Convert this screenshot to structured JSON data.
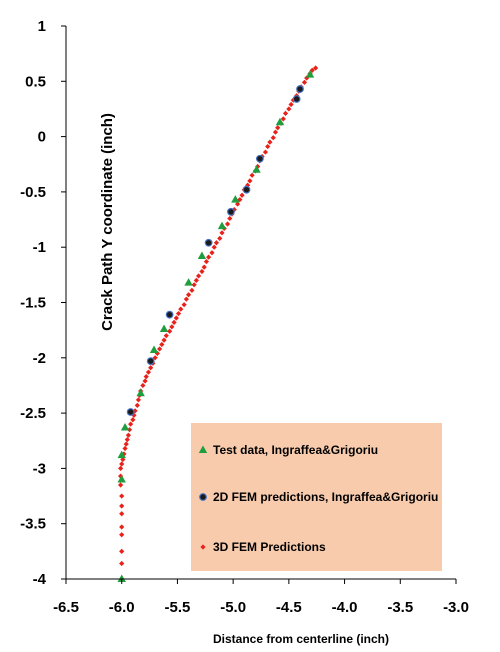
{
  "chart_data": {
    "type": "scatter",
    "xlabel": "Distance from centerline (inch)",
    "ylabel": "Crack Path Y coordinate (inch)",
    "xlim": [
      -6.5,
      -3.0
    ],
    "ylim": [
      -4,
      1
    ],
    "xticks": [
      "-6.5",
      "-6.0",
      "-5.5",
      "-5.0",
      "-4.5",
      "-4.0",
      "-3.5",
      "-3.0"
    ],
    "yticks": [
      "1",
      "0.5",
      "0",
      "-0.5",
      "-1",
      "-1.5",
      "-2",
      "-2.5",
      "-3",
      "-3.5",
      "-4"
    ],
    "legend_position": "bottom-right",
    "legend_background": "#f8cbad",
    "series": [
      {
        "name": "Test data, Ingraffea&Grigoriu",
        "marker": "triangle",
        "color": "#1e9e3c",
        "points": [
          [
            -6.0,
            -4.0
          ],
          [
            -6.0,
            -3.1
          ],
          [
            -6.0,
            -2.88
          ],
          [
            -5.97,
            -2.63
          ],
          [
            -5.83,
            -2.32
          ],
          [
            -5.71,
            -1.93
          ],
          [
            -5.62,
            -1.74
          ],
          [
            -5.4,
            -1.32
          ],
          [
            -5.28,
            -1.08
          ],
          [
            -5.1,
            -0.81
          ],
          [
            -4.98,
            -0.57
          ],
          [
            -4.79,
            -0.3
          ],
          [
            -4.58,
            0.13
          ],
          [
            -4.31,
            0.56
          ]
        ]
      },
      {
        "name": "2D FEM predictions, Ingraffea&Grigoriu",
        "marker": "circle",
        "color": "#1a1a1a",
        "edge": "#4472c4",
        "points": [
          [
            -5.92,
            -2.49
          ],
          [
            -5.74,
            -2.03
          ],
          [
            -5.57,
            -1.61
          ],
          [
            -5.22,
            -0.96
          ],
          [
            -5.02,
            -0.68
          ],
          [
            -4.88,
            -0.48
          ],
          [
            -4.76,
            -0.2
          ],
          [
            -4.43,
            0.34
          ],
          [
            -4.4,
            0.43
          ]
        ]
      },
      {
        "name": "3D FEM Predictions",
        "marker": "diamond",
        "color": "#e8221a",
        "points": [
          [
            -6.0,
            -4.0
          ],
          [
            -6.0,
            -3.86
          ],
          [
            -6.0,
            -3.75
          ],
          [
            -6.0,
            -3.6
          ],
          [
            -6.0,
            -3.53
          ],
          [
            -6.0,
            -3.41
          ],
          [
            -6.0,
            -3.34
          ],
          [
            -6.0,
            -3.25
          ],
          [
            -6.01,
            -3.15
          ],
          [
            -6.01,
            -3.07
          ],
          [
            -6.01,
            -3.0
          ],
          [
            -6.0,
            -2.96
          ],
          [
            -5.99,
            -2.92
          ],
          [
            -5.98,
            -2.87
          ],
          [
            -5.97,
            -2.82
          ],
          [
            -5.96,
            -2.78
          ],
          [
            -5.95,
            -2.74
          ],
          [
            -5.94,
            -2.7
          ],
          [
            -5.93,
            -2.65
          ],
          [
            -5.92,
            -2.6
          ],
          [
            -5.9,
            -2.56
          ],
          [
            -5.89,
            -2.52
          ],
          [
            -5.88,
            -2.48
          ],
          [
            -5.86,
            -2.43
          ],
          [
            -5.85,
            -2.38
          ],
          [
            -5.84,
            -2.34
          ],
          [
            -5.83,
            -2.3
          ],
          [
            -5.81,
            -2.25
          ],
          [
            -5.79,
            -2.21
          ],
          [
            -5.78,
            -2.17
          ],
          [
            -5.76,
            -2.13
          ],
          [
            -5.74,
            -2.09
          ],
          [
            -5.72,
            -2.05
          ],
          [
            -5.7,
            -2.0
          ],
          [
            -5.68,
            -1.96
          ],
          [
            -5.66,
            -1.92
          ],
          [
            -5.64,
            -1.88
          ],
          [
            -5.62,
            -1.84
          ],
          [
            -5.6,
            -1.8
          ],
          [
            -5.57,
            -1.76
          ],
          [
            -5.55,
            -1.72
          ],
          [
            -5.53,
            -1.68
          ],
          [
            -5.51,
            -1.64
          ],
          [
            -5.49,
            -1.6
          ],
          [
            -5.47,
            -1.56
          ],
          [
            -5.44,
            -1.52
          ],
          [
            -5.42,
            -1.47
          ],
          [
            -5.4,
            -1.43
          ],
          [
            -5.37,
            -1.39
          ],
          [
            -5.35,
            -1.34
          ],
          [
            -5.33,
            -1.3
          ],
          [
            -5.31,
            -1.26
          ],
          [
            -5.28,
            -1.22
          ],
          [
            -5.26,
            -1.18
          ],
          [
            -5.24,
            -1.13
          ],
          [
            -5.22,
            -1.09
          ],
          [
            -5.19,
            -1.05
          ],
          [
            -5.17,
            -1.0
          ],
          [
            -5.15,
            -0.96
          ],
          [
            -5.12,
            -0.92
          ],
          [
            -5.1,
            -0.87
          ],
          [
            -5.08,
            -0.83
          ],
          [
            -5.05,
            -0.79
          ],
          [
            -5.03,
            -0.74
          ],
          [
            -5.01,
            -0.7
          ],
          [
            -4.99,
            -0.66
          ],
          [
            -4.96,
            -0.61
          ],
          [
            -4.94,
            -0.57
          ],
          [
            -4.92,
            -0.53
          ],
          [
            -4.9,
            -0.48
          ],
          [
            -4.87,
            -0.44
          ],
          [
            -4.85,
            -0.4
          ],
          [
            -4.83,
            -0.35
          ],
          [
            -4.8,
            -0.31
          ],
          [
            -4.78,
            -0.27
          ],
          [
            -4.76,
            -0.22
          ],
          [
            -4.74,
            -0.18
          ],
          [
            -4.71,
            -0.14
          ],
          [
            -4.69,
            -0.09
          ],
          [
            -4.67,
            -0.05
          ],
          [
            -4.64,
            -0.01
          ],
          [
            -4.62,
            0.04
          ],
          [
            -4.6,
            0.08
          ],
          [
            -4.57,
            0.12
          ],
          [
            -4.55,
            0.16
          ],
          [
            -4.53,
            0.21
          ],
          [
            -4.5,
            0.25
          ],
          [
            -4.48,
            0.29
          ],
          [
            -4.46,
            0.33
          ],
          [
            -4.43,
            0.37
          ],
          [
            -4.41,
            0.41
          ],
          [
            -4.39,
            0.45
          ],
          [
            -4.36,
            0.49
          ],
          [
            -4.34,
            0.53
          ],
          [
            -4.31,
            0.57
          ],
          [
            -4.29,
            0.6
          ],
          [
            -4.26,
            0.62
          ]
        ]
      }
    ]
  }
}
